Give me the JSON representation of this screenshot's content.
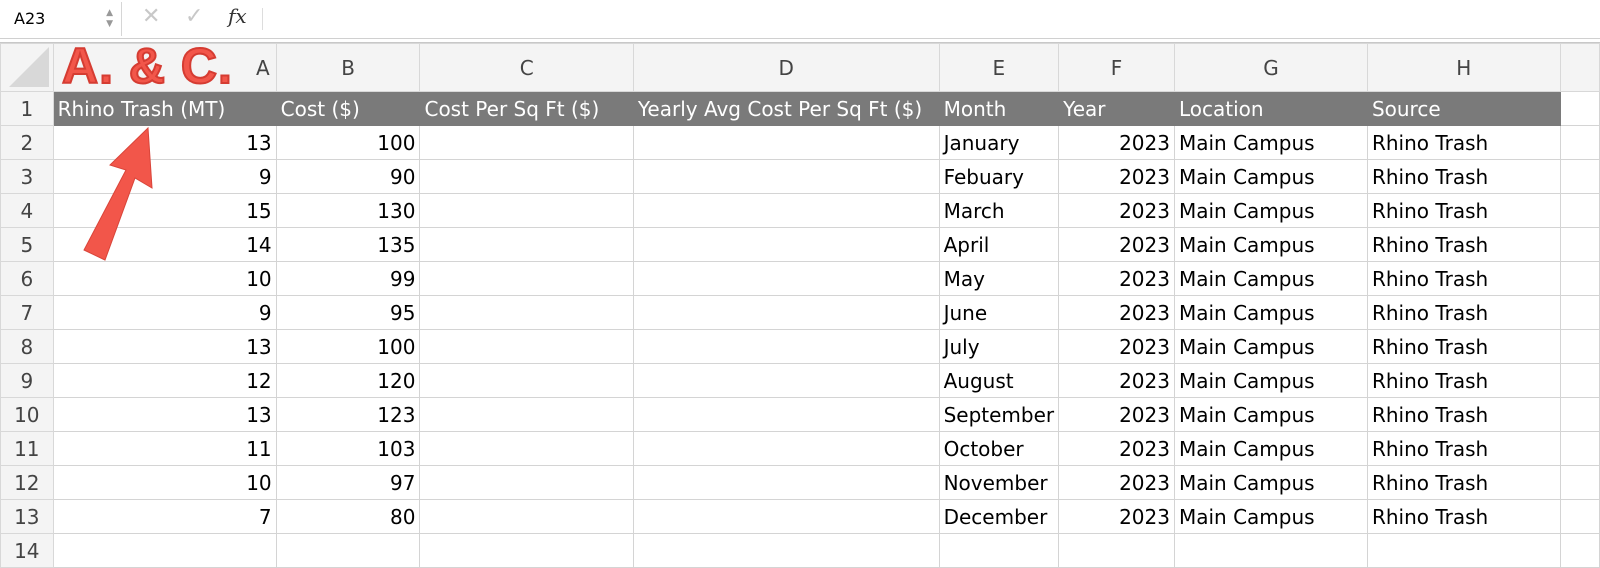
{
  "formula_bar": {
    "name_box": "A23",
    "cancel_icon": "✕",
    "confirm_icon": "✓",
    "fx_label": "fx",
    "formula": ""
  },
  "columns": [
    "A",
    "B",
    "C",
    "D",
    "E",
    "F",
    "G",
    "H"
  ],
  "annotation": {
    "text": "A. & C.",
    "color": "#f2564a"
  },
  "header_row": [
    "Rhino Trash (MT)",
    "Cost ($)",
    "Cost Per Sq Ft ($)",
    "Yearly Avg Cost Per Sq Ft ($)",
    "Month",
    "Year",
    "Location",
    "Source"
  ],
  "rows": [
    [
      "13",
      "100",
      "",
      "",
      "January",
      "2023",
      "Main Campus",
      "Rhino Trash"
    ],
    [
      "9",
      "90",
      "",
      "",
      "Febuary",
      "2023",
      "Main Campus",
      "Rhino Trash"
    ],
    [
      "15",
      "130",
      "",
      "",
      "March",
      "2023",
      "Main Campus",
      "Rhino Trash"
    ],
    [
      "14",
      "135",
      "",
      "",
      "April",
      "2023",
      "Main Campus",
      "Rhino Trash"
    ],
    [
      "10",
      "99",
      "",
      "",
      "May",
      "2023",
      "Main Campus",
      "Rhino Trash"
    ],
    [
      "9",
      "95",
      "",
      "",
      "June",
      "2023",
      "Main Campus",
      "Rhino Trash"
    ],
    [
      "13",
      "100",
      "",
      "",
      "July",
      "2023",
      "Main Campus",
      "Rhino Trash"
    ],
    [
      "12",
      "120",
      "",
      "",
      "August",
      "2023",
      "Main Campus",
      "Rhino Trash"
    ],
    [
      "13",
      "123",
      "",
      "",
      "September",
      "2023",
      "Main Campus",
      "Rhino Trash"
    ],
    [
      "11",
      "103",
      "",
      "",
      "October",
      "2023",
      "Main Campus",
      "Rhino Trash"
    ],
    [
      "10",
      "97",
      "",
      "",
      "November",
      "2023",
      "Main Campus",
      "Rhino Trash"
    ],
    [
      "7",
      "80",
      "",
      "",
      "December",
      "2023",
      "Main Campus",
      "Rhino Trash"
    ]
  ]
}
